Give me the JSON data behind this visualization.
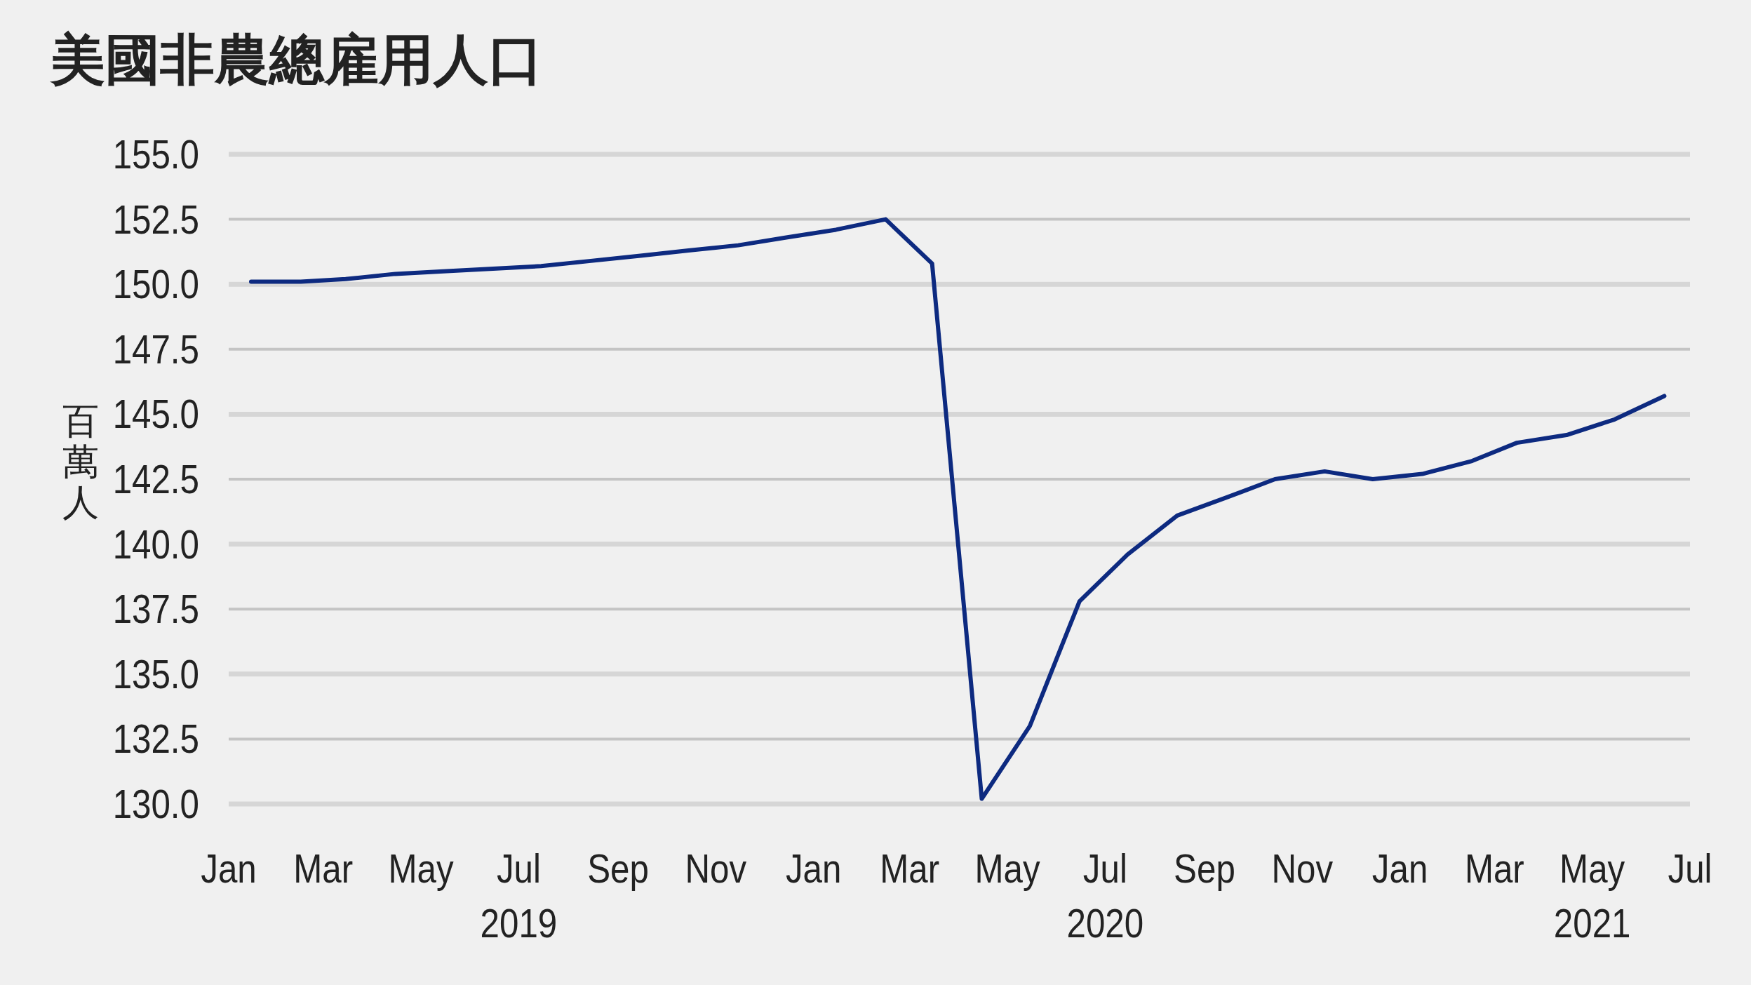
{
  "chart_data": {
    "type": "line",
    "title": "美國非農總雇用人口",
    "ylabel": "百萬人",
    "x": [
      "2019-01-15",
      "2019-02-15",
      "2019-03-15",
      "2019-04-15",
      "2019-05-15",
      "2019-06-15",
      "2019-07-15",
      "2019-08-15",
      "2019-09-15",
      "2019-10-15",
      "2019-11-15",
      "2019-12-15",
      "2020-01-15",
      "2020-02-15",
      "2020-03-15",
      "2020-04-15",
      "2020-05-15",
      "2020-06-15",
      "2020-07-15",
      "2020-08-15",
      "2020-09-15",
      "2020-10-15",
      "2020-11-15",
      "2020-12-15",
      "2021-01-15",
      "2021-02-15",
      "2021-03-15",
      "2021-04-15",
      "2021-05-15",
      "2021-06-15"
    ],
    "series": [
      {
        "color": "#0d2a80",
        "values": [
          150.1,
          150.1,
          150.2,
          150.4,
          150.5,
          150.6,
          150.7,
          150.9,
          151.1,
          151.3,
          151.5,
          151.8,
          152.1,
          152.5,
          150.8,
          130.2,
          133.0,
          137.8,
          139.6,
          141.1,
          141.8,
          142.5,
          142.8,
          142.5,
          142.7,
          143.2,
          143.9,
          144.2,
          144.8,
          145.7
        ]
      }
    ],
    "xlim": [
      "2019-01",
      "2021-07"
    ],
    "xticks": [
      {
        "value": "2019-01",
        "label": "Jan"
      },
      {
        "value": "2019-03",
        "label": "Mar"
      },
      {
        "value": "2019-05",
        "label": "May"
      },
      {
        "value": "2019-07",
        "label": "Jul\n2019"
      },
      {
        "value": "2019-09",
        "label": "Sep"
      },
      {
        "value": "2019-11",
        "label": "Nov"
      },
      {
        "value": "2020-01",
        "label": "Jan"
      },
      {
        "value": "2020-03",
        "label": "Mar"
      },
      {
        "value": "2020-05",
        "label": "May"
      },
      {
        "value": "2020-07",
        "label": "Jul\n2020"
      },
      {
        "value": "2020-09",
        "label": "Sep"
      },
      {
        "value": "2020-11",
        "label": "Nov"
      },
      {
        "value": "2021-01",
        "label": "Jan"
      },
      {
        "value": "2021-03",
        "label": "Mar"
      },
      {
        "value": "2021-05",
        "label": "May\n2021"
      },
      {
        "value": "2021-07",
        "label": "Jul"
      }
    ],
    "ylim": [
      130,
      155
    ],
    "yticks": [
      {
        "value": 130,
        "label": "130.0"
      },
      {
        "value": 132.5,
        "label": "132.5"
      },
      {
        "value": 135,
        "label": "135.0"
      },
      {
        "value": 137.5,
        "label": "137.5"
      },
      {
        "value": 140,
        "label": "140.0"
      },
      {
        "value": 142.5,
        "label": "142.5"
      },
      {
        "value": 145,
        "label": "145.0"
      },
      {
        "value": 147.5,
        "label": "147.5"
      },
      {
        "value": 150,
        "label": "150.0"
      },
      {
        "value": 152.5,
        "label": "152.5"
      },
      {
        "value": 155,
        "label": "155.0"
      }
    ],
    "grid": "y",
    "marker": "none",
    "line_style": "solid"
  }
}
